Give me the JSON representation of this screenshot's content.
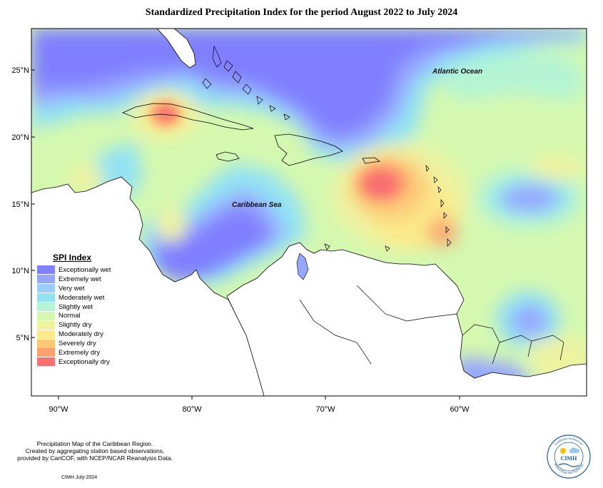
{
  "title": "Standardized Precipitation Index for the period August 2022 to July 2024",
  "map": {
    "lat_labels": [
      "25°N",
      "20°N",
      "15°N",
      "10°N",
      "5°N"
    ],
    "lon_labels": [
      "90°W",
      "80°W",
      "70°W",
      "60°W"
    ],
    "place_labels": {
      "atlantic": "Atlantic Ocean",
      "caribbean": "Caribbean Sea"
    }
  },
  "legend": {
    "title": "SPI Index",
    "items": [
      {
        "label": "Exceptionally wet",
        "color": "#7f7fff"
      },
      {
        "label": "Extremely wet",
        "color": "#96a6ff"
      },
      {
        "label": "Very wet",
        "color": "#9ccbff"
      },
      {
        "label": "Moderately wet",
        "color": "#92e2f4"
      },
      {
        "label": "Slightly wet",
        "color": "#b4f4d4"
      },
      {
        "label": "Normal",
        "color": "#d4f8b0"
      },
      {
        "label": "Slightly dry",
        "color": "#eef3a0"
      },
      {
        "label": "Moderately dry",
        "color": "#fbe98a"
      },
      {
        "label": "Severely dry",
        "color": "#fcc878"
      },
      {
        "label": "Extremely dry",
        "color": "#fca070"
      },
      {
        "label": "Exceptionally dry",
        "color": "#f87070"
      }
    ]
  },
  "footer": {
    "line1": "Precipitation Map of the Caribbean Region.",
    "line2": "Created by aggregating station based observations,",
    "line3": "provided by CariCOF, with NCEP/NCAR Reanalysis Data.",
    "credit": "CIMH July-2024"
  },
  "logo": {
    "text": "CIMH",
    "ring_top": "Caribbean Institute for",
    "ring_bottom": "Meteorology and Hydrology"
  }
}
